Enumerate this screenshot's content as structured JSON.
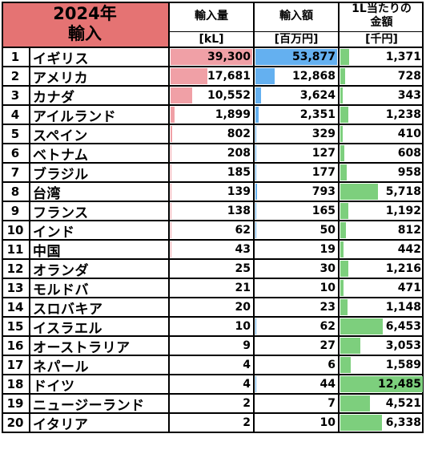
{
  "title": {
    "line1": "2024年",
    "line2": "輸入"
  },
  "headers": {
    "volume": "輸入量",
    "value": "輸入額",
    "per_liter_line1": "1L当たりの",
    "per_liter_line2": "金額"
  },
  "units": {
    "volume": "[kL]",
    "value": "[百万円]",
    "per_liter": "[千円]"
  },
  "colors": {
    "title_bg": "#e57373",
    "volume_bar": "#f0a0a6",
    "value_bar": "#64b0f0",
    "per_liter_bar": "#7dcf7d"
  },
  "scale_max": {
    "volume": 39300,
    "value": 53877,
    "per_liter": 12485
  },
  "rows": [
    {
      "rank": "1",
      "country": "イギリス",
      "volume": "39,300",
      "value": "53,877",
      "per_liter": "1,371",
      "v": 39300,
      "m": 53877,
      "p": 1371
    },
    {
      "rank": "2",
      "country": "アメリカ",
      "volume": "17,681",
      "value": "12,868",
      "per_liter": "728",
      "v": 17681,
      "m": 12868,
      "p": 728
    },
    {
      "rank": "3",
      "country": "カナダ",
      "volume": "10,552",
      "value": "3,624",
      "per_liter": "343",
      "v": 10552,
      "m": 3624,
      "p": 343
    },
    {
      "rank": "4",
      "country": "アイルランド",
      "volume": "1,899",
      "value": "2,351",
      "per_liter": "1,238",
      "v": 1899,
      "m": 2351,
      "p": 1238
    },
    {
      "rank": "5",
      "country": "スペイン",
      "volume": "802",
      "value": "329",
      "per_liter": "410",
      "v": 802,
      "m": 329,
      "p": 410
    },
    {
      "rank": "6",
      "country": "ベトナム",
      "volume": "208",
      "value": "127",
      "per_liter": "608",
      "v": 208,
      "m": 127,
      "p": 608
    },
    {
      "rank": "7",
      "country": "ブラジル",
      "volume": "185",
      "value": "177",
      "per_liter": "958",
      "v": 185,
      "m": 177,
      "p": 958
    },
    {
      "rank": "8",
      "country": "台湾",
      "volume": "139",
      "value": "793",
      "per_liter": "5,718",
      "v": 139,
      "m": 793,
      "p": 5718
    },
    {
      "rank": "9",
      "country": "フランス",
      "volume": "138",
      "value": "165",
      "per_liter": "1,192",
      "v": 138,
      "m": 165,
      "p": 1192
    },
    {
      "rank": "10",
      "country": "インド",
      "volume": "62",
      "value": "50",
      "per_liter": "812",
      "v": 62,
      "m": 50,
      "p": 812
    },
    {
      "rank": "11",
      "country": "中国",
      "volume": "43",
      "value": "19",
      "per_liter": "442",
      "v": 43,
      "m": 19,
      "p": 442
    },
    {
      "rank": "12",
      "country": "オランダ",
      "volume": "25",
      "value": "30",
      "per_liter": "1,216",
      "v": 25,
      "m": 30,
      "p": 1216
    },
    {
      "rank": "13",
      "country": "モルドバ",
      "volume": "21",
      "value": "10",
      "per_liter": "471",
      "v": 21,
      "m": 10,
      "p": 471
    },
    {
      "rank": "14",
      "country": "スロバキア",
      "volume": "20",
      "value": "23",
      "per_liter": "1,148",
      "v": 20,
      "m": 23,
      "p": 1148
    },
    {
      "rank": "15",
      "country": "イスラエル",
      "volume": "10",
      "value": "62",
      "per_liter": "6,453",
      "v": 10,
      "m": 62,
      "p": 6453
    },
    {
      "rank": "16",
      "country": "オーストラリア",
      "volume": "9",
      "value": "27",
      "per_liter": "3,053",
      "v": 9,
      "m": 27,
      "p": 3053
    },
    {
      "rank": "17",
      "country": "ネパール",
      "volume": "4",
      "value": "6",
      "per_liter": "1,589",
      "v": 4,
      "m": 6,
      "p": 1589
    },
    {
      "rank": "18",
      "country": "ドイツ",
      "volume": "4",
      "value": "44",
      "per_liter": "12,485",
      "v": 4,
      "m": 44,
      "p": 12485
    },
    {
      "rank": "19",
      "country": "ニュージーランド",
      "volume": "2",
      "value": "7",
      "per_liter": "4,521",
      "v": 2,
      "m": 7,
      "p": 4521
    },
    {
      "rank": "20",
      "country": "イタリア",
      "volume": "2",
      "value": "10",
      "per_liter": "6,338",
      "v": 2,
      "m": 10,
      "p": 6338
    }
  ]
}
